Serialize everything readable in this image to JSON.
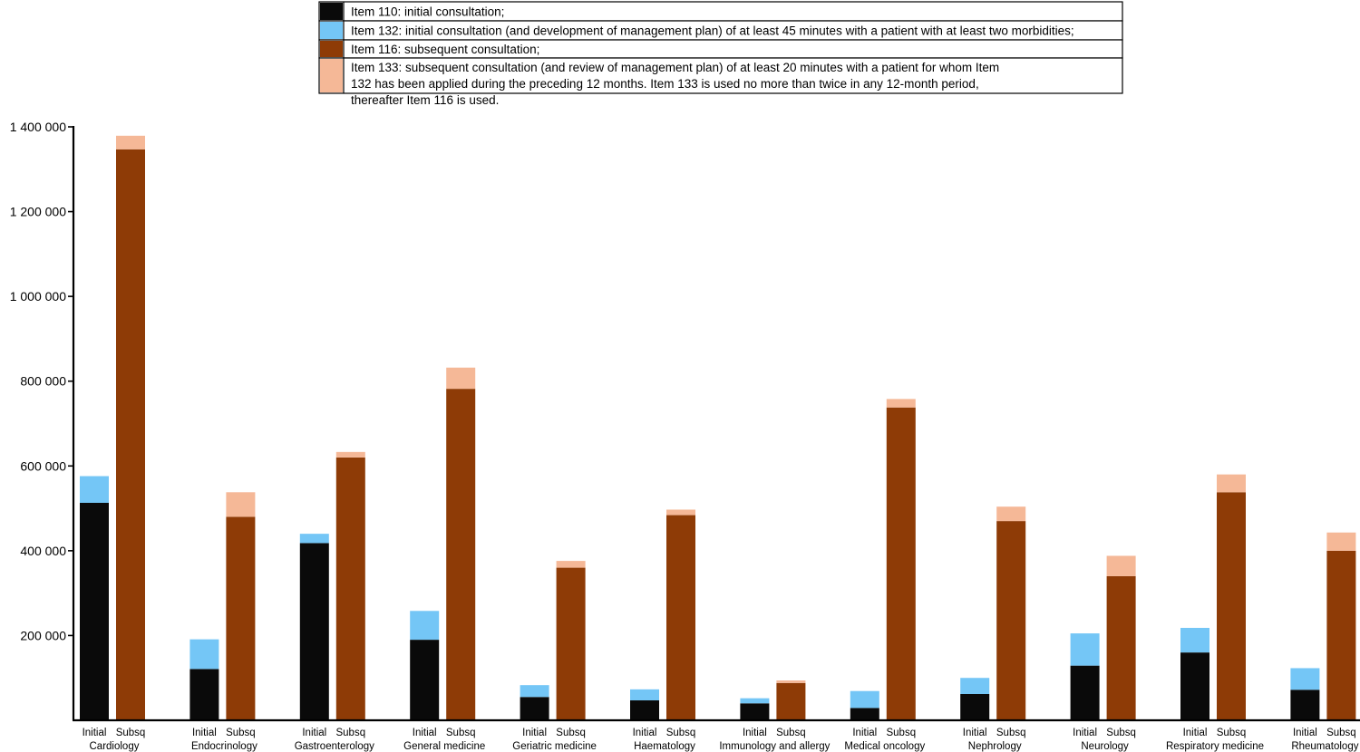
{
  "chart_data": {
    "type": "bar",
    "stacked": true,
    "grouped": true,
    "title": "",
    "xlabel": "",
    "ylabel": "",
    "ylim": [
      0,
      1400000
    ],
    "yticks": [
      200000,
      400000,
      600000,
      800000,
      1000000,
      1200000,
      1400000
    ],
    "ytick_labels": [
      "200 000",
      "400 000",
      "600 000",
      "800 000",
      "1 000 000",
      "1 200 000",
      "1 400 000"
    ],
    "grid": false,
    "legend_position": "top-center",
    "group_labels": [
      "Initial",
      "Subsq"
    ],
    "categories": [
      "Cardiology",
      "Endocrinology",
      "Gastroenterology",
      "General medicine",
      "Geriatric medicine",
      "Haematology",
      "Immunology and allergy",
      "Medical oncology",
      "Nephrology",
      "Neurology",
      "Respiratory medicine",
      "Rheumatology"
    ],
    "series": [
      {
        "name": "Item 110: initial consultation;",
        "color": "#0a0a0a",
        "group": "Initial",
        "values": [
          513000,
          121000,
          418000,
          190000,
          55000,
          47000,
          40000,
          29000,
          62000,
          129000,
          160000,
          72000
        ]
      },
      {
        "name": "Item 132: initial consultation (and development of management plan) of at least 45 minutes with a patient with at least two morbidities;",
        "color": "#74c6f6",
        "group": "Initial",
        "values": [
          63000,
          70000,
          22000,
          68000,
          28000,
          26000,
          12000,
          40000,
          38000,
          76000,
          58000,
          51000
        ]
      },
      {
        "name": "Item 116: subsequent consultation;",
        "color": "#8e3b06",
        "group": "Subsq",
        "values": [
          1347000,
          480000,
          620000,
          782000,
          360000,
          484000,
          88000,
          738000,
          470000,
          340000,
          538000,
          400000
        ]
      },
      {
        "name": "Item 133: subsequent consultation (and review of management plan) of at least 20 minutes with a patient for whom Item 132 has been applied during the preceding 12 months. Item 133 is used no more than twice in any 12-month period, thereafter Item 116 is used.",
        "color": "#f5b897",
        "group": "Subsq",
        "values": [
          32000,
          58000,
          13000,
          50000,
          16000,
          13000,
          6000,
          20000,
          34000,
          48000,
          42000,
          43000
        ]
      }
    ]
  }
}
